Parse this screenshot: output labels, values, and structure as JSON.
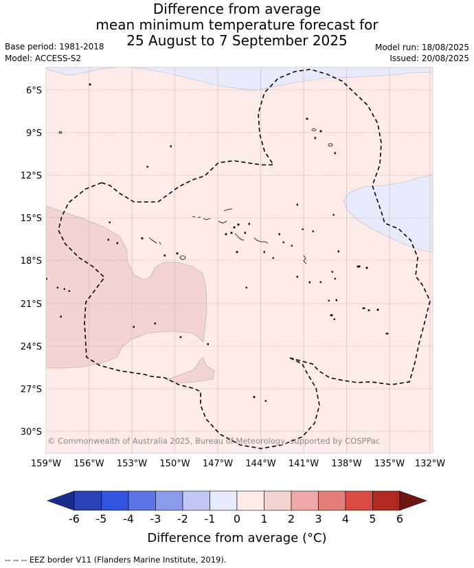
{
  "title": {
    "line1": "Difference from average",
    "line2": "mean minimum temperature forecast for",
    "line3": "25 August to 7 September 2025"
  },
  "meta": {
    "base_period": "Base period: 1981-2018",
    "model": "Model: ACCESS-S2",
    "model_run": "Model run: 18/08/2025",
    "issued": "Issued: 20/08/2025"
  },
  "map": {
    "lon_labels": [
      "159°W",
      "156°W",
      "153°W",
      "150°W",
      "147°W",
      "144°W",
      "141°W",
      "138°W",
      "135°W",
      "132°W"
    ],
    "lat_labels": [
      "6°S",
      "9°S",
      "12°S",
      "15°S",
      "18°S",
      "21°S",
      "24°S",
      "27°S",
      "30°S"
    ],
    "copyright": "© Commonwealth of Australia 2025, Bureau of Meteorology, supported by COSPPac",
    "colors": {
      "ocean_base": "#fcebe9",
      "warm_1_2": "#f4d3d3",
      "cool_0_neg1": "#e8ebfb",
      "land": "#000000"
    }
  },
  "colorbar": {
    "title": "Difference from average (°C)",
    "tick_labels": [
      "-6",
      "-5",
      "-4",
      "-3",
      "-2",
      "-1",
      "0",
      "1",
      "2",
      "3",
      "4",
      "5",
      "6"
    ],
    "colors": [
      "#1c2c8e",
      "#2a41b8",
      "#3255e0",
      "#5d74e6",
      "#8b9ced",
      "#c2c8f5",
      "#e8ebfb",
      "#fcebe9",
      "#f4d3d3",
      "#eea9a6",
      "#e47e79",
      "#d84a42",
      "#b0281f",
      "#6f1612"
    ]
  },
  "footer": {
    "eez_legend": "--  --  -- EEZ border V11 (Flanders Marine Institute, 2019)."
  }
}
